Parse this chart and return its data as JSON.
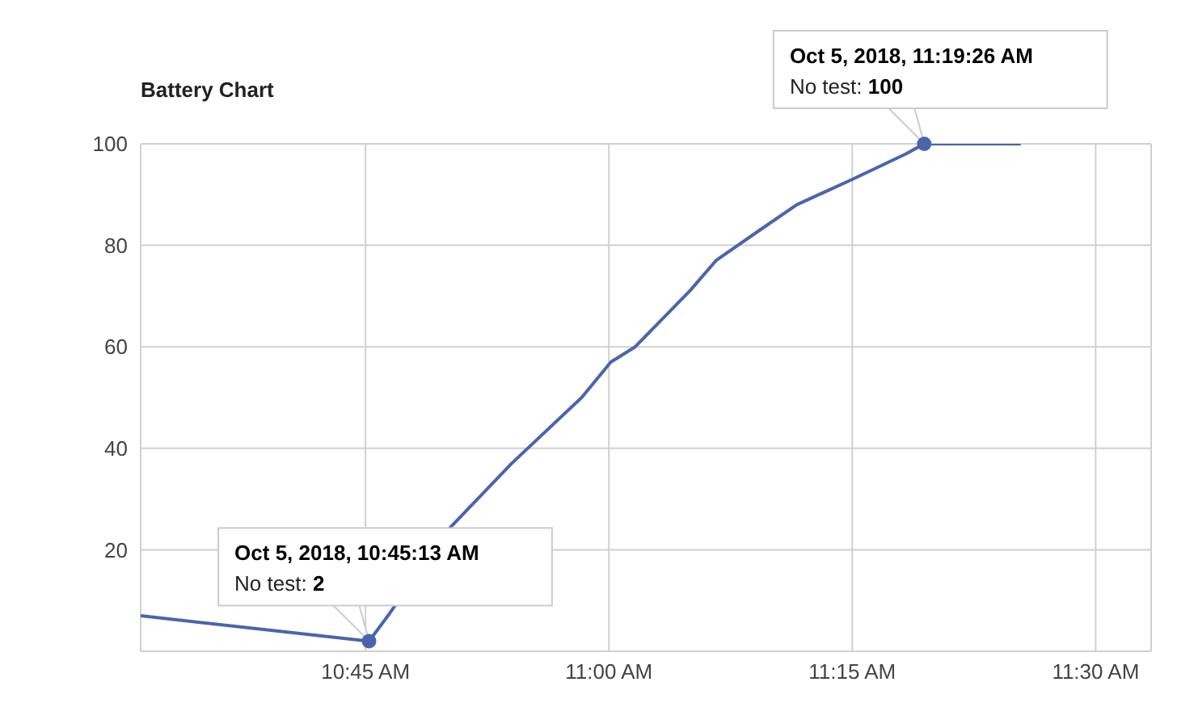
{
  "chart_data": {
    "type": "line",
    "title": "Battery Chart",
    "x": [
      10.519,
      10.7536,
      10.773,
      10.835,
      10.9,
      10.972,
      11.002,
      11.027,
      11.083,
      11.11,
      11.155,
      11.193,
      11.25,
      11.305,
      11.3239,
      11.423
    ],
    "series": [
      {
        "color": "#4a64ad",
        "values": [
          7,
          2,
          7,
          24,
          37,
          50,
          57,
          60,
          71,
          77,
          83,
          88,
          93,
          98,
          100,
          100
        ]
      }
    ],
    "xlim": [
      10.519,
      11.557
    ],
    "xticks": [
      {
        "value": 10.75,
        "label": "10:45 AM"
      },
      {
        "value": 11,
        "label": "11:00 AM"
      },
      {
        "value": 11.25,
        "label": "11:15 AM"
      },
      {
        "value": 11.5,
        "label": "11:30 AM"
      }
    ],
    "ylim": [
      0,
      100
    ],
    "yticks": [
      20,
      40,
      60,
      80,
      100
    ],
    "grid": true,
    "legend": false,
    "marker": "none",
    "line_style": "solid",
    "annotations": [
      {
        "text": "Oct 5, 2018, 10:45:13 AM\nNo test: 2",
        "x": 10.7536,
        "y": 2
      },
      {
        "text": "Oct 5, 2018, 11:19:26 AM\nNo test: 100",
        "x": 11.3239,
        "y": 100
      }
    ]
  }
}
